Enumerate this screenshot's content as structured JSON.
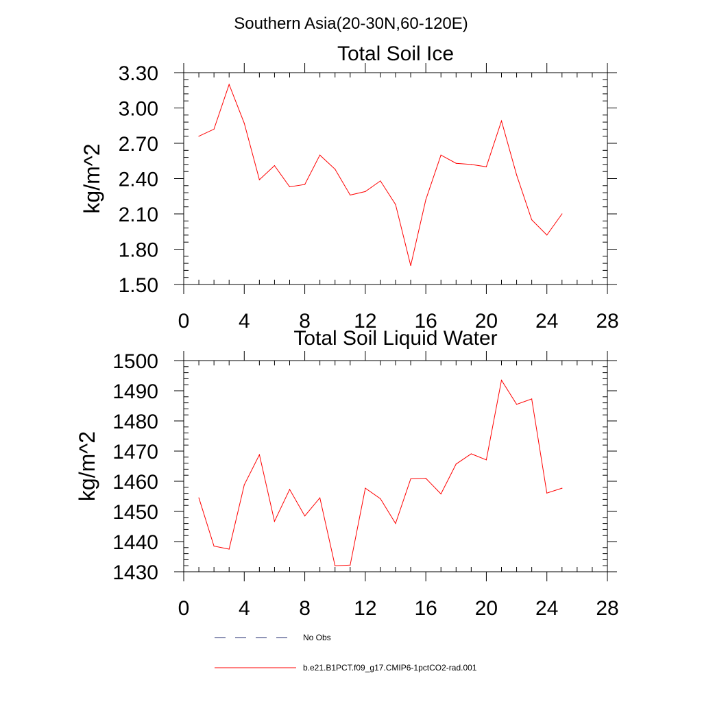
{
  "figure": {
    "title": "Southern Asia(20-30N,60-120E)"
  },
  "chart_data": [
    {
      "type": "line",
      "title": "Total Soil Ice",
      "xlabel": "",
      "ylabel": "kg/m^2",
      "xlim": [
        0,
        28
      ],
      "ylim": [
        1.5,
        3.3
      ],
      "x_ticks": [
        0,
        4,
        8,
        12,
        16,
        20,
        24,
        28
      ],
      "y_ticks": [
        "1.50",
        "1.80",
        "2.10",
        "2.40",
        "2.70",
        "3.00",
        "3.30"
      ],
      "series": [
        {
          "name": "b.e21.B1PCT.f09_g17.CMIP6-1pctCO2-rad.001",
          "color": "#ff0000",
          "x": [
            1,
            2,
            3,
            4,
            5,
            6,
            7,
            8,
            9,
            10,
            11,
            12,
            13,
            14,
            15,
            16,
            17,
            18,
            19,
            20,
            21,
            22,
            23,
            24,
            25
          ],
          "values": [
            2.76,
            2.82,
            3.2,
            2.87,
            2.39,
            2.51,
            2.33,
            2.35,
            2.6,
            2.48,
            2.26,
            2.29,
            2.38,
            2.18,
            1.66,
            2.22,
            2.6,
            2.53,
            2.52,
            2.5,
            2.89,
            2.43,
            2.05,
            1.92,
            2.1
          ]
        }
      ]
    },
    {
      "type": "line",
      "title": "Total Soil Liquid Water",
      "xlabel": "",
      "ylabel": "kg/m^2",
      "xlim": [
        0,
        28
      ],
      "ylim": [
        1430,
        1500
      ],
      "x_ticks": [
        0,
        4,
        8,
        12,
        16,
        20,
        24,
        28
      ],
      "y_ticks": [
        "1430",
        "1440",
        "1450",
        "1460",
        "1470",
        "1480",
        "1490",
        "1500"
      ],
      "series": [
        {
          "name": "b.e21.B1PCT.f09_g17.CMIP6-1pctCO2-rad.001",
          "color": "#ff0000",
          "x": [
            1,
            2,
            3,
            4,
            5,
            6,
            7,
            8,
            9,
            10,
            11,
            12,
            13,
            14,
            15,
            16,
            17,
            18,
            19,
            20,
            21,
            22,
            23,
            24,
            25
          ],
          "values": [
            1454.5,
            1438.5,
            1437.5,
            1458.8,
            1468.8,
            1446.7,
            1457.3,
            1448.5,
            1454.5,
            1432.0,
            1432.2,
            1457.7,
            1454.2,
            1446.0,
            1460.8,
            1461.0,
            1455.8,
            1465.7,
            1469.1,
            1467.1,
            1493.5,
            1485.5,
            1487.3,
            1456.1,
            1457.7
          ]
        }
      ]
    }
  ],
  "legend": {
    "items": [
      {
        "label": "No Obs",
        "color": "#1f2a6e",
        "style": "dashed"
      },
      {
        "label": "b.e21.B1PCT.f09_g17.CMIP6-1pctCO2-rad.001",
        "color": "#ff0000",
        "style": "solid"
      }
    ]
  }
}
